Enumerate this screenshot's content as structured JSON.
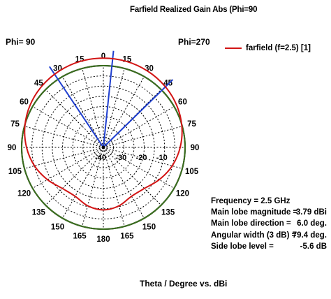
{
  "chart_data": {
    "type": "polar",
    "title": "Farfield Realized Gain Abs (Phi=90",
    "phi_labels": [
      "Phi= 90",
      "Phi=270"
    ],
    "angle_tick_labels_right": [
      "0",
      "15",
      "30",
      "45",
      "60",
      "75",
      "90",
      "105",
      "120",
      "135",
      "150",
      "165",
      "180"
    ],
    "angle_tick_labels_left": [
      "15",
      "30",
      "45",
      "60",
      "75",
      "90",
      "105",
      "120",
      "135",
      "150",
      "165"
    ],
    "radial_tick_labels": [
      "-40",
      "-30",
      "-20",
      "-10"
    ],
    "radial_range_dBi": [
      -40,
      0
    ],
    "xlabel": "Theta / Degree vs. dBi",
    "legend_position": "top-right",
    "series": [
      {
        "name": "farfield (f=2.5) [1]",
        "color": "#d21414",
        "theta_deg": [
          0,
          15,
          30,
          45,
          60,
          75,
          90,
          105,
          120,
          135,
          150,
          165,
          180,
          195,
          210,
          225,
          240,
          255,
          270,
          285,
          300,
          315,
          330,
          345
        ],
        "gain_dBi": [
          3.7,
          3.6,
          3.2,
          2.5,
          1.4,
          -0.2,
          -2.4,
          -5.1,
          -8.4,
          -11.6,
          -12.4,
          -10.4,
          -9.4,
          -10.4,
          -12.4,
          -11.6,
          -8.4,
          -5.1,
          -2.4,
          -0.2,
          1.4,
          2.5,
          3.2,
          3.6
        ]
      }
    ],
    "reference_circle": {
      "color": "#3a6e1e",
      "gain_dBi": 0
    },
    "main_lobe_direction_deg": 6.0,
    "beamwidth_lines_deg": [
      -33.7,
      6.0,
      45.7
    ],
    "beamwidth_line_color": "#1f3fd0",
    "annotations": [
      {
        "label": "Frequency = 2.5 GHz",
        "value": ""
      },
      {
        "label": "Main lobe magnitude =",
        "value": "3.79 dBi"
      },
      {
        "label": "Main lobe direction =",
        "value": "6.0 deg."
      },
      {
        "label": "Angular width (3 dB) =",
        "value": "79.4 deg."
      },
      {
        "label": "Side lobe level =",
        "value": "-5.6 dB"
      }
    ]
  }
}
